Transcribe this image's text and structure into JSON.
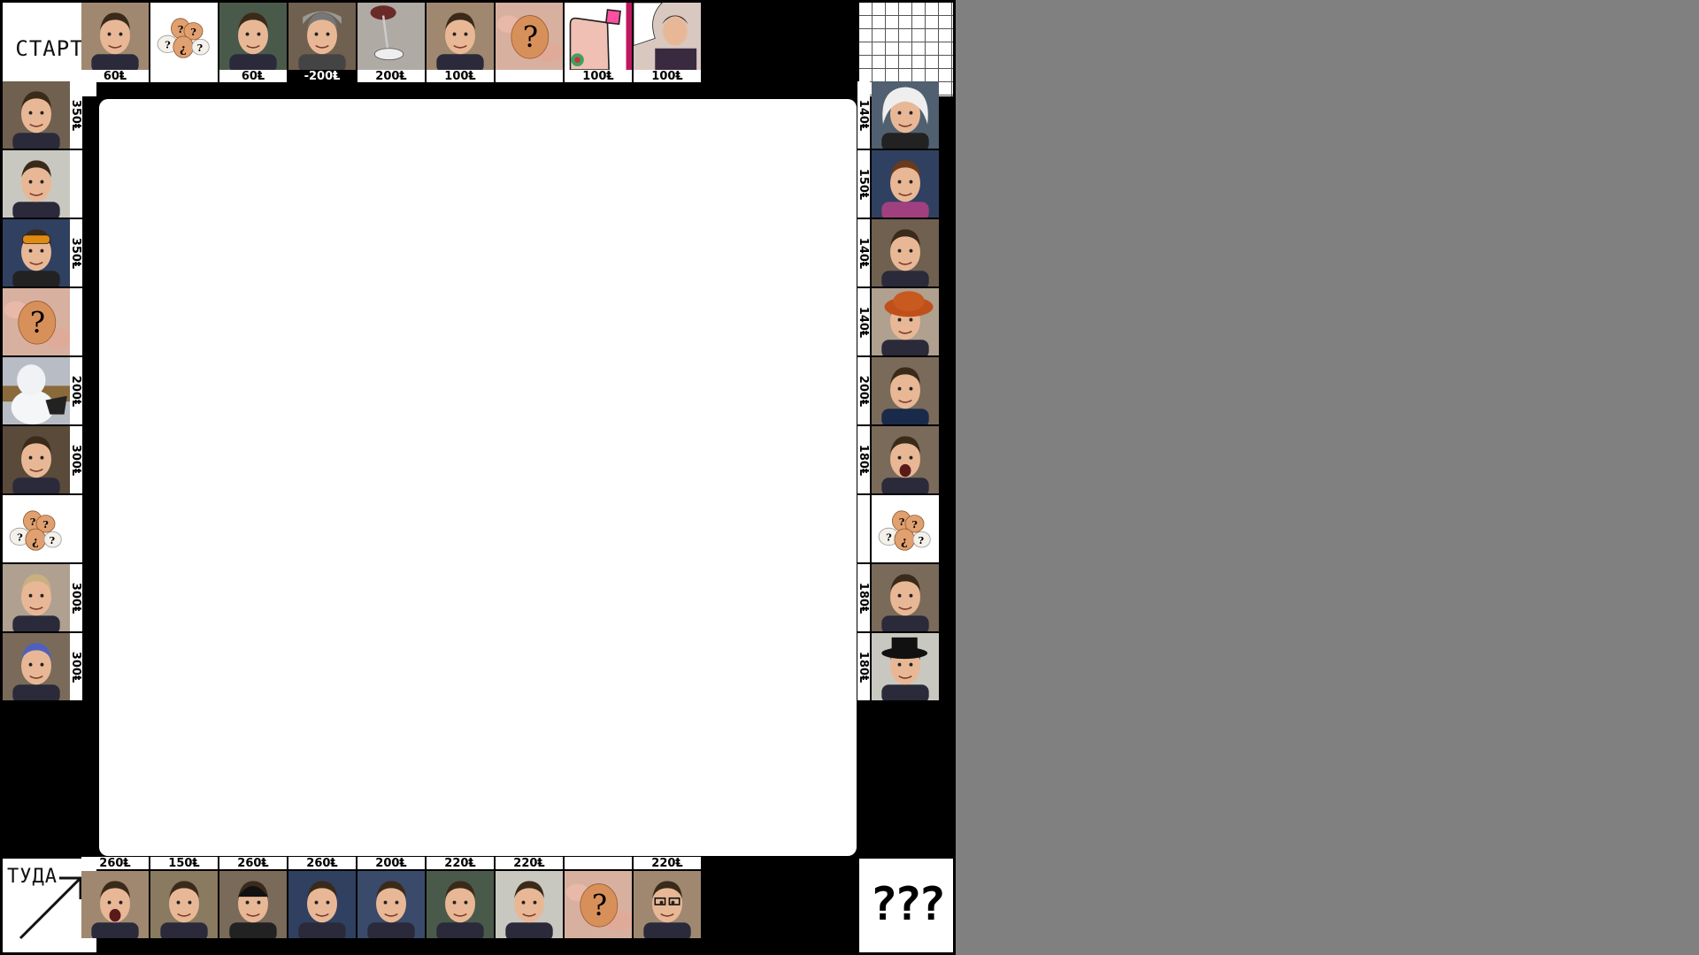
{
  "corners": {
    "start": "СТАРТ",
    "go": "ТУДА",
    "mystery": "???"
  },
  "top": [
    {
      "img": "portrait-smiling-boy-icon",
      "price": "60Ⱡ"
    },
    {
      "img": "eggs-question-icon",
      "price": ""
    },
    {
      "img": "portrait-boy-with-rifle-icon",
      "price": "60Ⱡ"
    },
    {
      "img": "portrait-boy-gray-hood-icon",
      "price": "-200Ⱡ"
    },
    {
      "img": "falling-spoon-icon",
      "price": "200Ⱡ"
    },
    {
      "img": "portrait-boy-headphones-icon",
      "price": "100Ⱡ"
    },
    {
      "img": "egg-in-hand-question-icon",
      "price": ""
    },
    {
      "img": "drawn-finger-icon",
      "price": "100Ⱡ"
    },
    {
      "img": "portrait-boy-drawn-hand-icon",
      "price": "100Ⱡ"
    }
  ],
  "right": [
    {
      "img": "portrait-girl-white-hood-icon",
      "price": "140Ⱡ"
    },
    {
      "img": "portrait-curly-girl-icon",
      "price": "150Ⱡ"
    },
    {
      "img": "portrait-profile-boy-icon",
      "price": "140Ⱡ"
    },
    {
      "img": "portrait-orange-hat-icon",
      "price": "140Ⱡ"
    },
    {
      "img": "portrait-man-suit-icon",
      "price": "200Ⱡ"
    },
    {
      "img": "portrait-screaming-boy-icon",
      "price": "180Ⱡ"
    },
    {
      "img": "eggs-question-icon",
      "price": ""
    },
    {
      "img": "portrait-stretched-face-icon",
      "price": "180Ⱡ"
    },
    {
      "img": "portrait-boy-black-hat-icon",
      "price": "180Ⱡ"
    }
  ],
  "bottom": [
    {
      "img": "portrait-boy-blue-shirt-icon",
      "price": "260Ⱡ"
    },
    {
      "img": "portrait-girl-with-book-icon",
      "price": "150Ⱡ"
    },
    {
      "img": "portrait-boy-black-beanie-icon",
      "price": "260Ⱡ"
    },
    {
      "img": "portrait-boy-frown-icon",
      "price": "260Ⱡ"
    },
    {
      "img": "portrait-two-boys-sunset-icon",
      "price": "200Ⱡ"
    },
    {
      "img": "portrait-long-hair-boy-icon",
      "price": "220Ⱡ"
    },
    {
      "img": "portrait-boy-black-shirt-icon",
      "price": "220Ⱡ"
    },
    {
      "img": "egg-in-hand-question-icon",
      "price": ""
    },
    {
      "img": "portrait-boy-glasses-icon",
      "price": "220Ⱡ"
    }
  ],
  "left": [
    {
      "img": "portrait-boy-blue-light-icon",
      "price": "350Ⱡ"
    },
    {
      "img": "portrait-closeup-face-icon",
      "price": ""
    },
    {
      "img": "portrait-boy-goggles-icon",
      "price": "350Ⱡ"
    },
    {
      "img": "egg-in-hand-question-icon",
      "price": ""
    },
    {
      "img": "snowman-icon",
      "price": "200Ⱡ"
    },
    {
      "img": "portrait-smirk-face-icon",
      "price": "300Ⱡ"
    },
    {
      "img": "eggs-question-icon",
      "price": ""
    },
    {
      "img": "portrait-boy-blond-icon",
      "price": "300Ⱡ"
    },
    {
      "img": "portrait-boy-blue-hair-icon",
      "price": "300Ⱡ"
    }
  ],
  "colors": {
    "board": "#000000",
    "background": "#808080",
    "tile": "#ffffff",
    "egg": "#e0a070"
  }
}
